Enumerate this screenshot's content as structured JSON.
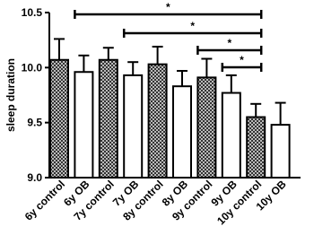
{
  "chart_data": {
    "type": "bar",
    "y_label": "sleep duration",
    "categories": [
      "6y control",
      "6y OB",
      "7y control",
      "7y OB",
      "8y control",
      "8y OB",
      "9y control",
      "9y OB",
      "10y control",
      "10y OB"
    ],
    "values": [
      10.07,
      9.96,
      10.07,
      9.93,
      10.03,
      9.83,
      9.91,
      9.77,
      9.55,
      9.48
    ],
    "errors": [
      0.19,
      0.15,
      0.11,
      0.12,
      0.16,
      0.14,
      0.17,
      0.16,
      0.12,
      0.2
    ],
    "fills": [
      "checkered",
      "white",
      "checkered",
      "white",
      "checkered",
      "white",
      "checkered",
      "white",
      "checkered",
      "white"
    ],
    "ylim": [
      9,
      10.5
    ],
    "yticks": [
      {
        "value": 9,
        "label": "9.0"
      },
      9.5,
      {
        "value": 10,
        "label": "10.0"
      },
      10.5
    ],
    "brackets": [
      {
        "from": 1,
        "to": 8,
        "label": "*"
      },
      {
        "from": 3,
        "to": 8,
        "label": "*"
      },
      {
        "from": 6,
        "to": 8,
        "label": "*"
      },
      {
        "from": 7,
        "to": 8,
        "label": "*"
      }
    ]
  }
}
